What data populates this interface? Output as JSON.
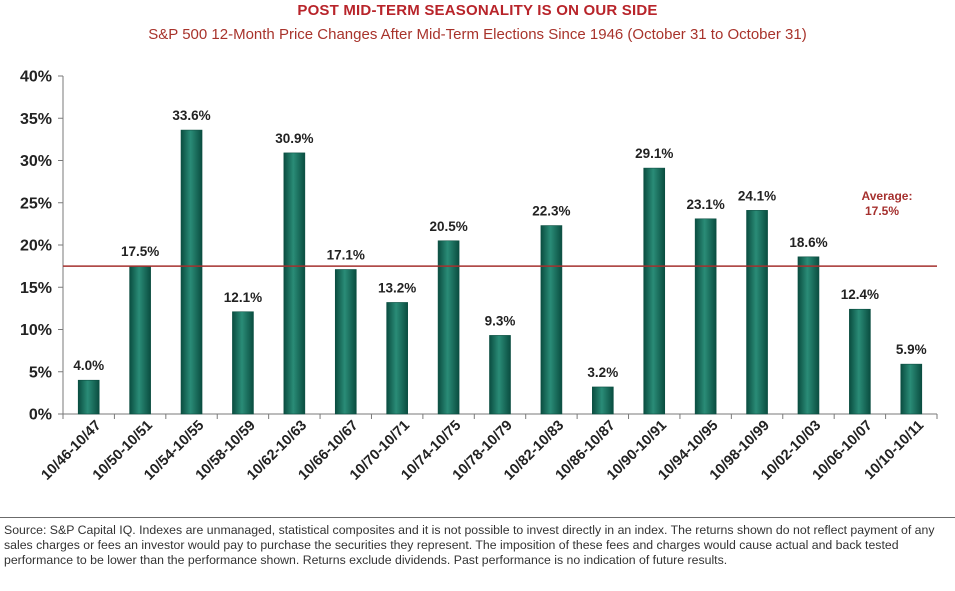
{
  "header": {
    "title": "POST MID-TERM SEASONALITY IS ON OUR SIDE",
    "subtitle": "S&P 500 12-Month Price Changes After Mid-Term Elections Since 1946 (October 31 to October 31)"
  },
  "chart_data": {
    "type": "bar",
    "categories": [
      "10/46-10/47",
      "10/50-10/51",
      "10/54-10/55",
      "10/58-10/59",
      "10/62-10/63",
      "10/66-10/67",
      "10/70-10/71",
      "10/74-10/75",
      "10/78-10/79",
      "10/82-10/83",
      "10/86-10/87",
      "10/90-10/91",
      "10/94-10/95",
      "10/98-10/99",
      "10/02-10/03",
      "10/06-10/07",
      "10/10-10/11"
    ],
    "values": [
      4.0,
      17.5,
      33.6,
      12.1,
      30.9,
      17.1,
      13.2,
      20.5,
      9.3,
      22.3,
      3.2,
      29.1,
      23.1,
      24.1,
      18.6,
      12.4,
      5.9
    ],
    "value_labels": [
      "4.0%",
      "17.5%",
      "33.6%",
      "12.1%",
      "30.9%",
      "17.1%",
      "13.2%",
      "20.5%",
      "9.3%",
      "22.3%",
      "3.2%",
      "29.1%",
      "23.1%",
      "24.1%",
      "18.6%",
      "12.4%",
      "5.9%"
    ],
    "y_ticks": [
      0,
      5,
      10,
      15,
      20,
      25,
      30,
      35,
      40
    ],
    "y_tick_labels": [
      "0%",
      "5%",
      "10%",
      "15%",
      "20%",
      "25%",
      "30%",
      "35%",
      "40%"
    ],
    "ylim": [
      0,
      40
    ],
    "average": {
      "value": 17.5,
      "label_line1": "Average:",
      "label_line2": "17.5%"
    },
    "colors": {
      "bar": "#0f6b5a",
      "bar_dark": "#0a4d40",
      "bar_light": "#2a8c77",
      "average_line": "#a5302e",
      "axis": "#7a7a7a"
    }
  },
  "footer": {
    "source": "Source: S&P Capital IQ. Indexes are unmanaged, statistical composites and it is not possible to invest directly in an index. The returns shown do not reflect payment of any sales charges or fees an investor would pay to purchase the securities they represent. The imposition of these fees and charges would cause actual and back tested performance to be lower than the performance shown. Returns exclude dividends. Past performance is no indication of future results."
  }
}
